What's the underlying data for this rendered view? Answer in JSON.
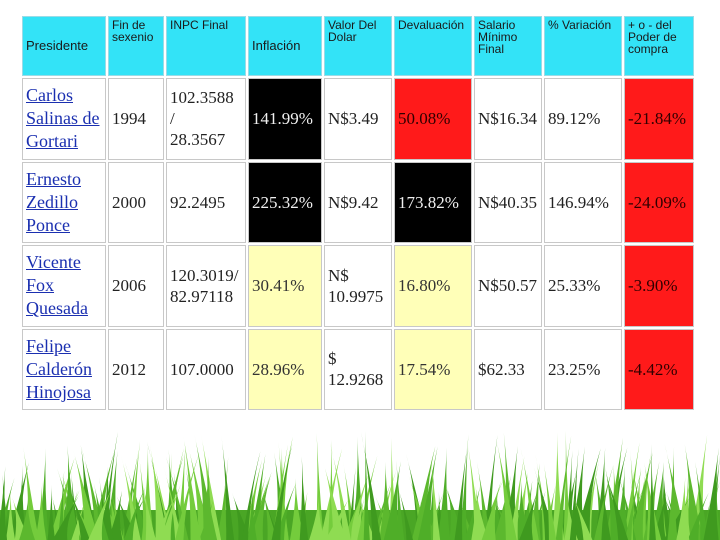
{
  "headers": [
    "Presidente",
    "Fin de sexenio",
    "INPC Final",
    "Inflación",
    "Valor Del Dolar",
    "Devaluación",
    "Salario Mínimo Final",
    "% Variación",
    "+ o - del Poder de compra"
  ],
  "rows": [
    {
      "name": [
        "Carlos",
        "Salinas de",
        "Gortari"
      ],
      "year": "1994",
      "inpc": [
        "102.3588 /",
        "28.3567"
      ],
      "inflacion": "141.99%",
      "dolar": [
        "N$3.49"
      ],
      "devaluacion": "50.08%",
      "salario": "N$16.34",
      "variacion": "89.12%",
      "poder": "-21.84%"
    },
    {
      "name": [
        "Ernesto",
        "Zedillo",
        "Ponce"
      ],
      "year": "2000",
      "inpc": [
        "92.2495"
      ],
      "inflacion": "225.32%",
      "dolar": [
        "N$9.42"
      ],
      "devaluacion": "173.82%",
      "salario": "N$40.35",
      "variacion": "146.94%",
      "poder": "-24.09%"
    },
    {
      "name": [
        "Vicente",
        "Fox",
        "Quesada"
      ],
      "year": "2006",
      "inpc": [
        "120.3019/",
        "82.97118"
      ],
      "inflacion": "30.41%",
      "dolar": [
        "N$",
        "10.9975"
      ],
      "devaluacion": "16.80%",
      "salario": "N$50.57",
      "variacion": "25.33%",
      "poder": "-3.90%"
    },
    {
      "name": [
        "Felipe",
        "Calderón",
        "Hinojosa"
      ],
      "year": "2012",
      "inpc": [
        "107.0000"
      ],
      "inflacion": "28.96%",
      "dolar": [
        "$",
        "12.9268"
      ],
      "devaluacion": "17.54%",
      "salario": "$62.33",
      "variacion": "23.25%",
      "poder": "-4.42%"
    }
  ],
  "colors": {
    "header_bg": "#33e3f7",
    "black_cell": "#000000",
    "red_cell": "#ff1a1a",
    "yellow_cell": "#ffffb8",
    "grass": "#5cb82e"
  }
}
